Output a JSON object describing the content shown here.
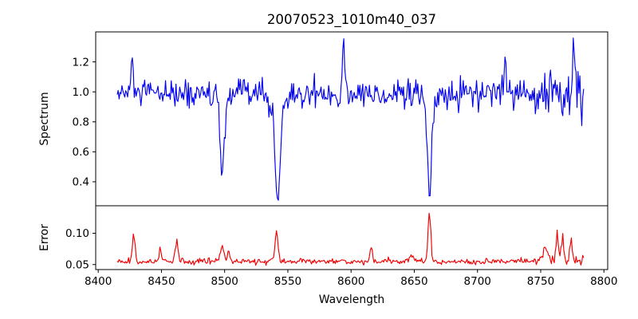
{
  "figure": {
    "title": "20070523_1010m40_037",
    "background": "#ffffff",
    "axis_color": "#000000"
  },
  "chart_data": {
    "type": "line",
    "title": "20070523_1010m40_037",
    "xlabel": "Wavelength",
    "grid": false,
    "legend": "none",
    "xlim": [
      8398,
      8803
    ],
    "x_data_range": [
      8415,
      8784
    ],
    "x_step": 0.75,
    "x_ticks": [
      8400,
      8450,
      8500,
      8550,
      8600,
      8650,
      8700,
      8750,
      8800
    ],
    "x_tick_labels": [
      "8400",
      "8450",
      "8500",
      "8550",
      "8600",
      "8650",
      "8700",
      "8750",
      "8800"
    ],
    "seed": 12345,
    "panels": [
      {
        "name": "spectrum",
        "ylabel": "Spectrum",
        "line_color": "#0000f0",
        "ylim": [
          0.24,
          1.4
        ],
        "y_ticks": [
          0.4,
          0.6,
          0.8,
          1.0,
          1.2
        ],
        "y_tick_labels": [
          "0.4",
          "0.6",
          "0.8",
          "1.0",
          "1.2"
        ],
        "continuum_level": 0.985,
        "noise_sigma": 0.048,
        "right_noise_boost": {
          "from_x": 8745,
          "factor": 1.9
        },
        "absorption_lines": [
          {
            "center": 8498,
            "min_value": 0.41,
            "core_depth": 0.47,
            "core_width": 1.5,
            "wing_depth": 0.1,
            "wing_width": 3.5
          },
          {
            "center": 8542,
            "min_value": 0.28,
            "core_depth": 0.56,
            "core_width": 1.9,
            "wing_depth": 0.14,
            "wing_width": 4.5
          },
          {
            "center": 8662,
            "min_value": 0.35,
            "core_depth": 0.52,
            "core_width": 1.7,
            "wing_depth": 0.11,
            "wing_width": 4.0
          }
        ],
        "emission_spikes": [
          {
            "center": 8427,
            "height": 0.2,
            "width": 0.9
          },
          {
            "center": 8594,
            "height": 0.35,
            "width": 0.8
          },
          {
            "center": 8722,
            "height": 0.27,
            "width": 0.8
          },
          {
            "center": 8758,
            "height": 0.2,
            "width": 0.7
          },
          {
            "center": 8776,
            "height": 0.23,
            "width": 0.9
          }
        ],
        "clip": [
          0.26,
          1.385
        ]
      },
      {
        "name": "error",
        "ylabel": "Error",
        "line_color": "#f00000",
        "ylim": [
          0.042,
          0.144
        ],
        "y_ticks": [
          0.05,
          0.1
        ],
        "y_tick_labels": [
          "0.05",
          "0.10"
        ],
        "continuum_level": 0.054,
        "noise_sigma": 0.0022,
        "right_noise_boost": {
          "from_x": 8745,
          "factor": 2.2
        },
        "bumps": [
          {
            "center": 8428,
            "height": 0.038,
            "width": 1.1
          },
          {
            "center": 8449,
            "height": 0.02,
            "width": 0.9
          },
          {
            "center": 8462,
            "height": 0.034,
            "width": 1.0
          },
          {
            "center": 8498,
            "height": 0.026,
            "width": 1.3
          },
          {
            "center": 8503,
            "height": 0.014,
            "width": 0.9
          },
          {
            "center": 8541,
            "height": 0.043,
            "width": 1.2
          },
          {
            "center": 8616,
            "height": 0.022,
            "width": 0.9
          },
          {
            "center": 8648,
            "height": 0.011,
            "width": 1.4
          },
          {
            "center": 8662,
            "height": 0.084,
            "width": 1.0
          },
          {
            "center": 8754,
            "height": 0.022,
            "width": 2.2
          },
          {
            "center": 8763,
            "height": 0.049,
            "width": 0.9
          },
          {
            "center": 8767,
            "height": 0.04,
            "width": 0.9
          },
          {
            "center": 8774,
            "height": 0.036,
            "width": 1.1
          }
        ],
        "clip": [
          0.045,
          0.141
        ]
      }
    ]
  }
}
